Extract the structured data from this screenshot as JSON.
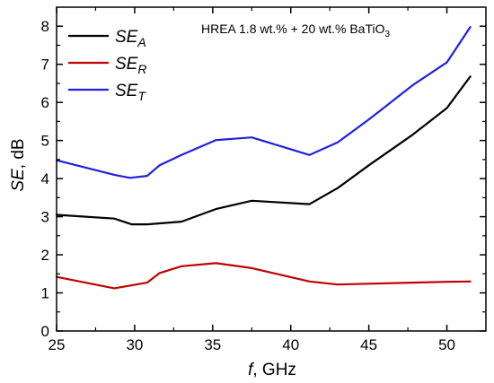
{
  "chart_data": {
    "type": "line",
    "annotation": {
      "main": "HREA  1.8 wt.% + 20 wt.% BaTiO",
      "sub": "3"
    },
    "xlabel": {
      "italic": "f",
      "rest": ", GHz"
    },
    "ylabel": {
      "italic": "SE",
      "rest": ", dB"
    },
    "xlim": [
      25,
      52.5
    ],
    "ylim": [
      0,
      8.5
    ],
    "xticks": [
      25,
      30,
      35,
      40,
      45,
      50
    ],
    "yticks": [
      0,
      1,
      2,
      3,
      4,
      5,
      6,
      7,
      8
    ],
    "grid": false,
    "legend_position": "top-left",
    "series": [
      {
        "name": "SE",
        "sub": "A",
        "color": "#000000",
        "x": [
          25,
          28.7,
          29.8,
          30.8,
          33,
          35.2,
          37.5,
          41.2,
          43,
          45,
          47.8,
          50,
          51.5
        ],
        "y": [
          3.05,
          2.95,
          2.8,
          2.8,
          2.87,
          3.2,
          3.42,
          3.33,
          3.75,
          4.35,
          5.15,
          5.85,
          6.68
        ]
      },
      {
        "name": "SE",
        "sub": "R",
        "color": "#c00000",
        "x": [
          25,
          28.7,
          30.8,
          31.6,
          33,
          35.2,
          37.5,
          41.2,
          43,
          45,
          47.8,
          50,
          51.5
        ],
        "y": [
          1.42,
          1.12,
          1.27,
          1.52,
          1.7,
          1.78,
          1.65,
          1.3,
          1.22,
          1.24,
          1.27,
          1.29,
          1.3
        ]
      },
      {
        "name": "SE",
        "sub": "T",
        "color": "#1e22dd",
        "x": [
          25,
          28.7,
          29.7,
          30.8,
          31.6,
          33,
          35.2,
          37.5,
          41.2,
          43,
          45,
          47.8,
          50,
          51.5
        ],
        "y": [
          4.48,
          4.1,
          4.02,
          4.07,
          4.35,
          4.62,
          5.01,
          5.08,
          4.62,
          4.95,
          5.55,
          6.45,
          7.05,
          7.98
        ]
      }
    ]
  }
}
